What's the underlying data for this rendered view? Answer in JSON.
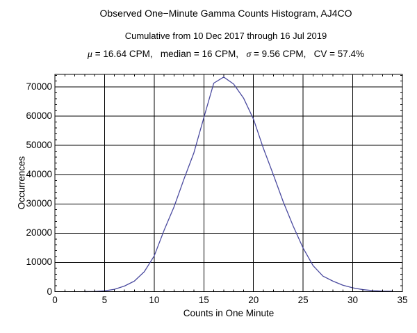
{
  "header": {
    "title": "Observed One−Minute Gamma Counts Histogram, AJ4CO",
    "subtitle": "Cumulative from 10 Dec 2017 through 16 Jul 2019",
    "stats": {
      "mu_symbol": "μ",
      "after_mu": " = 16.64 CPM,   median = 16 CPM,   ",
      "sigma_symbol": "σ",
      "after_sigma": " = 9.56 CPM,   CV = 57.4%"
    }
  },
  "axes": {
    "x_label": "Counts in One Minute",
    "y_label": "Occurrences"
  },
  "colors": {
    "background": "#ffffff",
    "frame_and_grid": "#000000",
    "curve": "#4a4a9f",
    "text": "#000000"
  },
  "chart_data": {
    "type": "line",
    "title": "Observed One−Minute Gamma Counts Histogram, AJ4CO",
    "subtitle": "Cumulative from 10 Dec 2017 through 16 Jul 2019",
    "stats_annotation": "μ = 16.64 CPM, median = 16 CPM, σ = 9.56 CPM, CV = 57.4%",
    "xlabel": "Counts in One Minute",
    "ylabel": "Occurrences",
    "xlim": [
      0,
      35
    ],
    "ylim": [
      0,
      74300
    ],
    "grid": true,
    "legend": "none",
    "x_major_ticks": [
      0,
      5,
      10,
      15,
      20,
      25,
      30,
      35
    ],
    "x_tick_labels": [
      "0",
      "5",
      "10",
      "15",
      "20",
      "25",
      "30",
      "35"
    ],
    "y_major_ticks": [
      0,
      10000,
      20000,
      30000,
      40000,
      50000,
      60000,
      70000
    ],
    "y_tick_labels": [
      "0",
      "10000",
      "20000",
      "30000",
      "40000",
      "50000",
      "60000",
      "70000"
    ],
    "x_minor_step": 1,
    "y_minor_step": 2000,
    "x_gridlines": [
      5,
      10,
      15,
      20,
      25,
      30
    ],
    "y_gridlines": [
      10000,
      20000,
      30000,
      40000,
      50000,
      60000,
      70000
    ],
    "line_color": "#4a4a9f",
    "x": [
      3,
      4,
      5,
      6,
      7,
      8,
      9,
      10,
      11,
      12,
      13,
      14,
      15,
      16,
      17,
      18,
      19,
      20,
      21,
      22,
      23,
      24,
      25,
      26,
      27,
      28,
      29,
      30,
      31,
      32,
      33,
      34
    ],
    "y": [
      20,
      60,
      250,
      800,
      1900,
      3600,
      6800,
      12200,
      21000,
      29000,
      38500,
      47500,
      59500,
      71300,
      73400,
      71000,
      66200,
      59000,
      49000,
      40000,
      30700,
      22400,
      14900,
      8900,
      5300,
      3600,
      2200,
      1300,
      700,
      350,
      180,
      100
    ]
  }
}
